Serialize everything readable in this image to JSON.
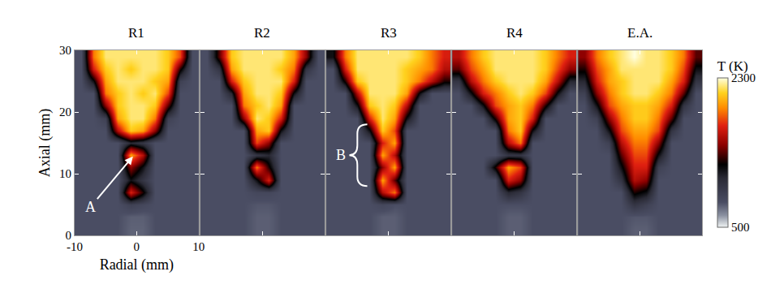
{
  "chart_data": [
    {
      "type": "heatmap",
      "title": "R1",
      "xlabel": "Radial (mm)",
      "ylabel": "Axial (mm)",
      "xlim": [
        -10,
        10
      ],
      "xticks": [
        -10,
        0,
        10
      ],
      "ylim": [
        0,
        30
      ],
      "yticks": [
        0,
        10,
        20,
        30
      ],
      "annotations": [
        "A"
      ],
      "x": [
        -9,
        -7,
        -5,
        -3,
        -1,
        1,
        3,
        5,
        7,
        9
      ],
      "y": [
        1,
        3,
        5,
        7,
        9,
        11,
        13,
        15,
        17,
        19,
        21,
        23,
        25,
        27,
        29
      ],
      "z": [
        [
          800,
          800,
          800,
          800,
          750,
          750,
          800,
          800,
          800,
          800
        ],
        [
          800,
          800,
          800,
          800,
          760,
          760,
          800,
          800,
          800,
          800
        ],
        [
          800,
          800,
          800,
          800,
          900,
          850,
          800,
          800,
          800,
          800
        ],
        [
          800,
          800,
          800,
          800,
          1700,
          1300,
          800,
          800,
          800,
          800
        ],
        [
          800,
          800,
          800,
          800,
          1200,
          1000,
          800,
          800,
          800,
          800
        ],
        [
          800,
          800,
          800,
          800,
          1500,
          1200,
          800,
          800,
          800,
          800
        ],
        [
          800,
          800,
          800,
          800,
          2000,
          1600,
          800,
          800,
          800,
          800
        ],
        [
          800,
          800,
          800,
          800,
          1100,
          1000,
          800,
          800,
          800,
          800
        ],
        [
          800,
          800,
          800,
          1600,
          2100,
          2000,
          1500,
          800,
          800,
          800
        ],
        [
          800,
          800,
          900,
          2000,
          2200,
          2200,
          1900,
          900,
          800,
          800
        ],
        [
          800,
          800,
          1500,
          2100,
          2200,
          2200,
          2100,
          1400,
          800,
          800
        ],
        [
          800,
          800,
          1900,
          2100,
          2200,
          2100,
          2200,
          1800,
          800,
          800
        ],
        [
          800,
          1200,
          2000,
          2200,
          2200,
          2200,
          2100,
          2000,
          900,
          800
        ],
        [
          800,
          1700,
          2100,
          2200,
          2100,
          2200,
          2200,
          2100,
          1300,
          800
        ],
        [
          800,
          1900,
          2200,
          2200,
          2200,
          2200,
          2200,
          2100,
          1800,
          800
        ]
      ]
    },
    {
      "type": "heatmap",
      "title": "R2",
      "tick_labels": false,
      "xlim": [
        -10,
        10
      ],
      "xticks": [
        -10,
        0,
        10
      ],
      "ylim": [
        0,
        30
      ],
      "yticks": [
        0,
        10,
        20,
        30
      ],
      "x": [
        -9,
        -7,
        -5,
        -3,
        -1,
        1,
        3,
        5,
        7,
        9
      ],
      "y": [
        1,
        3,
        5,
        7,
        9,
        11,
        13,
        15,
        17,
        19,
        21,
        23,
        25,
        27,
        29
      ],
      "z": [
        [
          800,
          800,
          800,
          800,
          760,
          760,
          800,
          800,
          800,
          800
        ],
        [
          800,
          800,
          800,
          800,
          760,
          760,
          800,
          800,
          800,
          800
        ],
        [
          800,
          800,
          800,
          800,
          780,
          780,
          800,
          800,
          800,
          800
        ],
        [
          800,
          800,
          800,
          800,
          850,
          850,
          800,
          800,
          800,
          800
        ],
        [
          800,
          800,
          800,
          800,
          1200,
          1700,
          800,
          800,
          800,
          800
        ],
        [
          800,
          800,
          800,
          800,
          1900,
          1300,
          800,
          800,
          800,
          800
        ],
        [
          800,
          800,
          800,
          800,
          1000,
          1100,
          800,
          800,
          800,
          800
        ],
        [
          800,
          800,
          800,
          800,
          1800,
          1500,
          800,
          800,
          800,
          800
        ],
        [
          800,
          800,
          800,
          800,
          2000,
          2100,
          1200,
          800,
          800,
          800
        ],
        [
          800,
          800,
          800,
          1500,
          2200,
          2100,
          1700,
          800,
          800,
          800
        ],
        [
          800,
          800,
          800,
          1900,
          2100,
          2200,
          2000,
          800,
          800,
          800
        ],
        [
          800,
          800,
          1100,
          2000,
          2200,
          2200,
          2100,
          1200,
          800,
          800
        ],
        [
          800,
          800,
          1700,
          2100,
          2200,
          2200,
          2200,
          1700,
          800,
          800
        ],
        [
          800,
          1000,
          2000,
          2200,
          2200,
          2200,
          2100,
          1900,
          1000,
          800
        ],
        [
          800,
          1400,
          2100,
          2200,
          2200,
          2200,
          2200,
          2000,
          1500,
          800
        ]
      ]
    },
    {
      "type": "heatmap",
      "title": "R3",
      "tick_labels": false,
      "xlim": [
        -10,
        10
      ],
      "xticks": [
        -10,
        0,
        10
      ],
      "ylim": [
        0,
        30
      ],
      "yticks": [
        0,
        10,
        20,
        30
      ],
      "annotations": [
        "B"
      ],
      "x": [
        -9,
        -7,
        -5,
        -3,
        -1,
        1,
        3,
        5,
        7,
        9
      ],
      "y": [
        1,
        3,
        5,
        7,
        9,
        11,
        13,
        15,
        17,
        19,
        21,
        23,
        25,
        27,
        29
      ],
      "z": [
        [
          800,
          800,
          800,
          800,
          760,
          760,
          800,
          800,
          800,
          800
        ],
        [
          800,
          800,
          800,
          800,
          760,
          760,
          800,
          800,
          800,
          800
        ],
        [
          800,
          800,
          800,
          800,
          850,
          800,
          800,
          800,
          800,
          800
        ],
        [
          800,
          800,
          800,
          800,
          1600,
          1900,
          800,
          800,
          800,
          800
        ],
        [
          800,
          800,
          800,
          800,
          2000,
          1400,
          800,
          800,
          800,
          800
        ],
        [
          800,
          800,
          800,
          800,
          1500,
          2000,
          800,
          800,
          800,
          800
        ],
        [
          800,
          800,
          800,
          800,
          2000,
          1600,
          800,
          800,
          800,
          800
        ],
        [
          800,
          800,
          800,
          800,
          1700,
          2000,
          800,
          800,
          800,
          800
        ],
        [
          800,
          800,
          800,
          1200,
          2100,
          1800,
          800,
          800,
          800,
          800
        ],
        [
          800,
          800,
          800,
          1700,
          2200,
          2000,
          1200,
          800,
          800,
          800
        ],
        [
          800,
          800,
          1200,
          2100,
          2200,
          2100,
          1600,
          800,
          800,
          800
        ],
        [
          800,
          800,
          1600,
          2200,
          2200,
          2200,
          2000,
          1200,
          800,
          800
        ],
        [
          800,
          1300,
          2100,
          2200,
          2200,
          2200,
          2100,
          1900,
          1600,
          1300
        ],
        [
          800,
          1700,
          2200,
          2200,
          2200,
          2200,
          2100,
          2000,
          1900,
          1600
        ],
        [
          1200,
          1900,
          2200,
          2200,
          2200,
          2200,
          2200,
          2100,
          1900,
          1700
        ]
      ]
    },
    {
      "type": "heatmap",
      "title": "R4",
      "tick_labels": false,
      "xlim": [
        -10,
        10
      ],
      "xticks": [
        -10,
        0,
        10
      ],
      "ylim": [
        0,
        30
      ],
      "yticks": [
        0,
        10,
        20,
        30
      ],
      "x": [
        -9,
        -7,
        -5,
        -3,
        -1,
        1,
        3,
        5,
        7,
        9
      ],
      "y": [
        1,
        3,
        5,
        7,
        9,
        11,
        13,
        15,
        17,
        19,
        21,
        23,
        25,
        27,
        29
      ],
      "z": [
        [
          800,
          800,
          800,
          800,
          760,
          760,
          800,
          800,
          800,
          800
        ],
        [
          800,
          800,
          800,
          800,
          760,
          760,
          800,
          800,
          800,
          800
        ],
        [
          800,
          800,
          800,
          800,
          800,
          800,
          800,
          800,
          800,
          800
        ],
        [
          800,
          800,
          800,
          800,
          1100,
          1000,
          800,
          800,
          800,
          800
        ],
        [
          800,
          800,
          800,
          800,
          1700,
          1500,
          800,
          800,
          800,
          800
        ],
        [
          800,
          800,
          800,
          1300,
          2000,
          1800,
          800,
          800,
          800,
          800
        ],
        [
          800,
          800,
          800,
          800,
          1000,
          1000,
          800,
          800,
          800,
          800
        ],
        [
          800,
          800,
          800,
          800,
          1600,
          1900,
          800,
          800,
          800,
          800
        ],
        [
          800,
          800,
          800,
          800,
          1900,
          2100,
          1200,
          800,
          800,
          800
        ],
        [
          800,
          800,
          800,
          1300,
          2000,
          2100,
          1700,
          800,
          800,
          800
        ],
        [
          800,
          800,
          1200,
          1800,
          2000,
          2100,
          1900,
          1300,
          800,
          800
        ],
        [
          800,
          1200,
          1700,
          1900,
          2100,
          2200,
          2100,
          1800,
          1200,
          800
        ],
        [
          1000,
          1600,
          1900,
          2100,
          2200,
          2200,
          2200,
          2000,
          1600,
          1100
        ],
        [
          1400,
          1800,
          2000,
          2200,
          2200,
          2200,
          2200,
          2100,
          1800,
          1500
        ],
        [
          1600,
          1900,
          2100,
          2200,
          2200,
          2200,
          2200,
          2100,
          1900,
          1700
        ]
      ]
    },
    {
      "type": "heatmap",
      "title": "E.A.",
      "tick_labels": false,
      "xlim": [
        -10,
        10
      ],
      "xticks": [
        -10,
        0,
        10
      ],
      "ylim": [
        0,
        30
      ],
      "yticks": [
        0,
        10,
        20,
        30
      ],
      "colorbar": {
        "title": "T (K)",
        "zlim": [
          500,
          2300
        ],
        "zticks": [
          500,
          2300
        ]
      },
      "x": [
        -9,
        -7,
        -5,
        -3,
        -1,
        1,
        3,
        5,
        7,
        9
      ],
      "y": [
        1,
        3,
        5,
        7,
        9,
        11,
        13,
        15,
        17,
        19,
        21,
        23,
        25,
        27,
        29
      ],
      "z": [
        [
          800,
          800,
          800,
          800,
          760,
          760,
          800,
          800,
          800,
          800
        ],
        [
          800,
          800,
          800,
          800,
          780,
          780,
          800,
          800,
          800,
          800
        ],
        [
          800,
          800,
          800,
          800,
          1000,
          900,
          800,
          800,
          800,
          800
        ],
        [
          800,
          800,
          800,
          800,
          1300,
          1200,
          800,
          800,
          800,
          800
        ],
        [
          800,
          800,
          800,
          1000,
          1600,
          1500,
          800,
          800,
          800,
          800
        ],
        [
          800,
          800,
          800,
          1200,
          1700,
          1700,
          900,
          800,
          800,
          800
        ],
        [
          800,
          800,
          800,
          1400,
          1800,
          1800,
          1200,
          800,
          800,
          800
        ],
        [
          800,
          800,
          900,
          1600,
          1900,
          1900,
          1500,
          800,
          800,
          800
        ],
        [
          800,
          800,
          1200,
          1800,
          2000,
          2000,
          1800,
          1000,
          800,
          800
        ],
        [
          800,
          900,
          1500,
          1900,
          2100,
          2100,
          1900,
          1400,
          800,
          800
        ],
        [
          800,
          1200,
          1800,
          2000,
          2100,
          2100,
          2000,
          1700,
          1000,
          800
        ],
        [
          900,
          1500,
          1900,
          2100,
          2200,
          2200,
          2100,
          1900,
          1400,
          800
        ],
        [
          1100,
          1700,
          2000,
          2100,
          2200,
          2200,
          2200,
          2000,
          1700,
          1000
        ],
        [
          1300,
          1800,
          2000,
          2200,
          2200,
          2200,
          2200,
          2100,
          1800,
          1200
        ],
        [
          1500,
          1900,
          2100,
          2200,
          2300,
          2200,
          2200,
          2100,
          1900,
          1400
        ]
      ]
    }
  ]
}
